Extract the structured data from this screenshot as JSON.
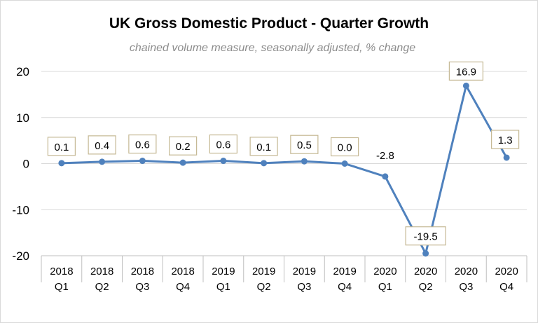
{
  "chart_data": {
    "type": "line",
    "title": "UK Gross Domestic Product - Quarter Growth",
    "subtitle": "chained volume measure, seasonally adjusted, % change",
    "categories": [
      [
        "2018",
        "Q1"
      ],
      [
        "2018",
        "Q2"
      ],
      [
        "2018",
        "Q3"
      ],
      [
        "2018",
        "Q4"
      ],
      [
        "2019",
        "Q1"
      ],
      [
        "2019",
        "Q2"
      ],
      [
        "2019",
        "Q3"
      ],
      [
        "2019",
        "Q4"
      ],
      [
        "2020",
        "Q1"
      ],
      [
        "2020",
        "Q2"
      ],
      [
        "2020",
        "Q3"
      ],
      [
        "2020",
        "Q4"
      ]
    ],
    "series": [
      {
        "values": [
          0.1,
          0.4,
          0.6,
          0.2,
          0.6,
          0.1,
          0.5,
          0.0,
          -2.8,
          -19.5,
          16.9,
          1.3
        ],
        "data_labels": [
          "0.1",
          "0.4",
          "0.6",
          "0.2",
          "0.6",
          "0.1",
          "0.5",
          "0.0",
          "-2.8",
          "-19.5",
          "16.9",
          "1.3"
        ],
        "color": "#4f81bd"
      }
    ],
    "ylim": [
      -20,
      20
    ],
    "yticks": [
      20,
      10,
      0,
      -10,
      -20
    ],
    "ytick_labels": [
      "20",
      "10",
      "0",
      "-10",
      "-20"
    ],
    "xlabel": "",
    "ylabel": "",
    "grid": true,
    "legend": "none"
  }
}
